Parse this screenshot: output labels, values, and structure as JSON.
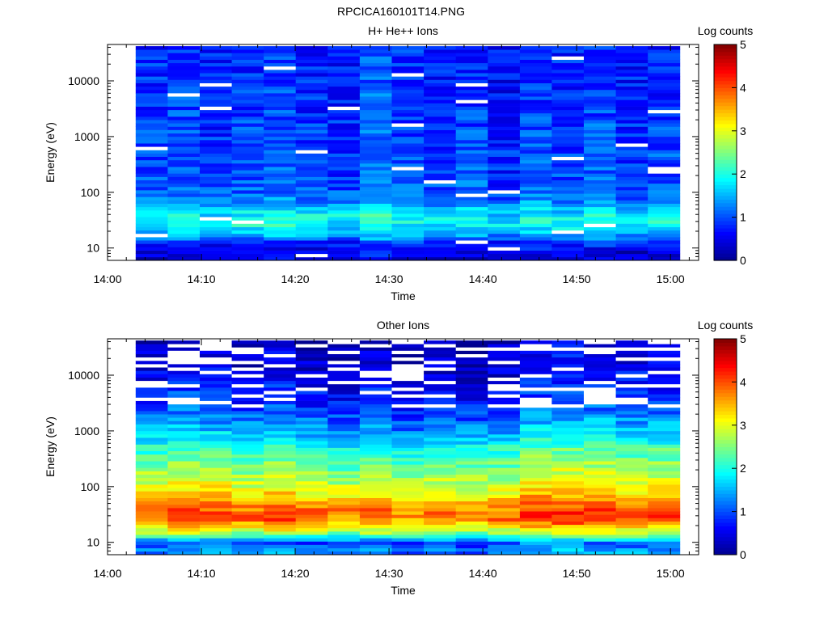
{
  "figure": {
    "title": "RPCICA160101T14.PNG"
  },
  "colors": {
    "jet": [
      "#00008f",
      "#0000ff",
      "#007fff",
      "#00ffff",
      "#7fff7f",
      "#ffff00",
      "#ff7f00",
      "#ff0000",
      "#7f0000"
    ],
    "missing": "#ffffff",
    "axis": "#000000"
  },
  "chart_data": [
    {
      "type": "heatmap",
      "title": "H+ He++ Ions",
      "xlabel": "Time",
      "ylabel": "Energy (eV)",
      "colorbar_label": "Log counts",
      "y_scale": "log",
      "xlim": [
        "14:00",
        "15:03"
      ],
      "ylim": [
        6,
        45000
      ],
      "x_ticks": [
        "14:00",
        "14:10",
        "14:20",
        "14:30",
        "14:40",
        "14:50",
        "15:00"
      ],
      "y_ticks": [
        10,
        100,
        1000,
        10000
      ],
      "y_tick_labels": [
        "10",
        "100",
        "1000",
        "10000"
      ],
      "colorbar_range": [
        0,
        5
      ],
      "colorbar_ticks": [
        "0",
        "1",
        "2",
        "3",
        "4",
        "5"
      ],
      "grid": false,
      "time_start": "14:03",
      "time_end": "15:01",
      "energy_range": [
        6,
        42000
      ],
      "energy_profile": [
        {
          "energy": 7,
          "value": 0.4
        },
        {
          "energy": 10,
          "value": 0.6
        },
        {
          "energy": 13,
          "value": 0.9
        },
        {
          "energy": 18,
          "value": 1.5
        },
        {
          "energy": 25,
          "value": 1.9
        },
        {
          "energy": 35,
          "value": 2.0
        },
        {
          "energy": 50,
          "value": 1.6
        },
        {
          "energy": 70,
          "value": 1.3
        },
        {
          "energy": 100,
          "value": 1.1
        },
        {
          "energy": 200,
          "value": 1.0
        },
        {
          "energy": 500,
          "value": 1.0
        },
        {
          "energy": 1000,
          "value": 0.95
        },
        {
          "energy": 5000,
          "value": 0.85
        },
        {
          "energy": 42000,
          "value": 0.8
        }
      ],
      "column_variation": [
        0.0,
        0.1,
        -0.1,
        0.0,
        0.1,
        -0.05,
        -0.1,
        0.25,
        0.0,
        -0.1,
        0.05,
        -0.2,
        0.05,
        -0.05,
        0.1,
        -0.1,
        0.0
      ]
    },
    {
      "type": "heatmap",
      "title": "Other Ions",
      "xlabel": "Time",
      "ylabel": "Energy (eV)",
      "colorbar_label": "Log counts",
      "y_scale": "log",
      "xlim": [
        "14:00",
        "15:03"
      ],
      "ylim": [
        6,
        45000
      ],
      "x_ticks": [
        "14:00",
        "14:10",
        "14:20",
        "14:30",
        "14:40",
        "14:50",
        "15:00"
      ],
      "y_ticks": [
        10,
        100,
        1000,
        10000
      ],
      "y_tick_labels": [
        "10",
        "100",
        "1000",
        "10000"
      ],
      "colorbar_range": [
        0,
        5
      ],
      "colorbar_ticks": [
        "0",
        "1",
        "2",
        "3",
        "4",
        "5"
      ],
      "grid": false,
      "time_start": "14:03",
      "time_end": "15:01",
      "energy_range": [
        6,
        42000
      ],
      "energy_profile": [
        {
          "energy": 7,
          "value": 1.3
        },
        {
          "energy": 10,
          "value": 1.0
        },
        {
          "energy": 13,
          "value": 2.3
        },
        {
          "energy": 18,
          "value": 3.1
        },
        {
          "energy": 25,
          "value": 3.9
        },
        {
          "energy": 35,
          "value": 4.0
        },
        {
          "energy": 50,
          "value": 3.6
        },
        {
          "energy": 70,
          "value": 3.3
        },
        {
          "energy": 100,
          "value": 3.0
        },
        {
          "energy": 200,
          "value": 2.6
        },
        {
          "energy": 500,
          "value": 2.1
        },
        {
          "energy": 1000,
          "value": 1.5
        },
        {
          "energy": 3000,
          "value": 0.9
        },
        {
          "energy": 10000,
          "value": 0.5
        },
        {
          "energy": 42000,
          "value": 0.3
        }
      ],
      "column_variation": [
        0.0,
        0.2,
        0.1,
        -0.1,
        0.1,
        -0.1,
        -0.2,
        0.0,
        -0.3,
        -0.1,
        -0.2,
        -0.1,
        0.2,
        0.25,
        0.2,
        0.1,
        0.1
      ],
      "missing_above": 2500
    }
  ]
}
